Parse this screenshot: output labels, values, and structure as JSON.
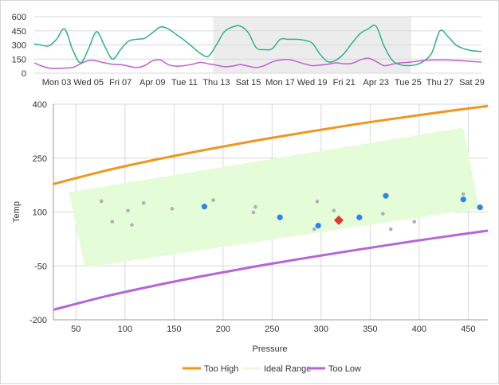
{
  "chart_data": [
    {
      "type": "line",
      "role": "navigator",
      "x_tick_labels": [
        "Mon 03",
        "Wed 05",
        "Fri 07",
        "Apr 09",
        "Tue 11",
        "Thu 13",
        "Sat 15",
        "Mon 17",
        "Wed 19",
        "Fri 21",
        "Apr 23",
        "Tue 25",
        "Thu 27",
        "Sat 29"
      ],
      "x_range": [
        1.6,
        29.6
      ],
      "ylim": [
        0,
        600
      ],
      "y_ticks": [
        0,
        150,
        300,
        450,
        600
      ],
      "selection_range": [
        12.8,
        25.2
      ],
      "colors": {
        "series_a": "#2bb38a",
        "series_b": "#c25fd1",
        "selection": "#ececec"
      },
      "series": [
        {
          "x": [
            1.6,
            2.0,
            2.5,
            3.0,
            3.5,
            4.0,
            4.5,
            5.0,
            5.5,
            6.0,
            6.5,
            7.0,
            7.5,
            8.0,
            8.5,
            9.0,
            9.5,
            10.0,
            10.5,
            11.0,
            11.5,
            12.0,
            12.5,
            13.0,
            13.5,
            14.0,
            14.5,
            15.0,
            15.5,
            16.0,
            16.5,
            17.0,
            17.5,
            18.0,
            18.5,
            19.0,
            19.5,
            20.0,
            20.5,
            21.0,
            21.5,
            22.0,
            22.5,
            23.0,
            23.5,
            24.0,
            24.5,
            25.0,
            25.5,
            26.0,
            26.5,
            27.0,
            27.5,
            28.0,
            28.5,
            29.0,
            29.6
          ],
          "values": [
            310,
            300,
            290,
            360,
            470,
            250,
            110,
            260,
            440,
            290,
            150,
            250,
            340,
            360,
            370,
            430,
            490,
            470,
            410,
            350,
            280,
            210,
            180,
            300,
            440,
            490,
            500,
            430,
            270,
            250,
            260,
            360,
            360,
            360,
            350,
            320,
            200,
            120,
            140,
            210,
            320,
            420,
            470,
            500,
            290,
            140,
            90,
            80,
            90,
            130,
            220,
            450,
            390,
            300,
            260,
            240,
            230
          ]
        },
        {
          "x": [
            1.6,
            2.0,
            2.5,
            3.0,
            3.5,
            4.0,
            4.5,
            5.0,
            5.5,
            6.0,
            6.5,
            7.0,
            7.5,
            8.0,
            8.5,
            9.0,
            9.5,
            10.0,
            10.5,
            11.0,
            11.5,
            12.0,
            12.5,
            13.0,
            13.5,
            14.0,
            14.5,
            15.0,
            15.5,
            16.0,
            16.5,
            17.0,
            17.5,
            18.0,
            18.5,
            19.0,
            19.5,
            20.0,
            20.5,
            21.0,
            21.5,
            22.0,
            22.5,
            23.0,
            23.5,
            24.0,
            24.5,
            25.0,
            25.5,
            26.0,
            26.5,
            27.0,
            27.5,
            28.0,
            28.5,
            29.0,
            29.6
          ],
          "values": [
            110,
            80,
            55,
            50,
            55,
            60,
            100,
            135,
            130,
            110,
            95,
            90,
            75,
            60,
            80,
            130,
            140,
            90,
            75,
            80,
            95,
            115,
            100,
            85,
            70,
            75,
            90,
            75,
            60,
            80,
            120,
            140,
            145,
            125,
            100,
            80,
            85,
            95,
            110,
            100,
            105,
            140,
            160,
            125,
            80,
            95,
            110,
            115,
            125,
            135,
            140,
            140,
            140,
            135,
            130,
            125,
            118
          ]
        }
      ]
    },
    {
      "type": "scatter",
      "role": "main",
      "xlabel": "Pressure",
      "ylabel": "Temp",
      "xlim": [
        27,
        470
      ],
      "ylim": [
        -200,
        400
      ],
      "x_ticks": [
        50,
        100,
        150,
        200,
        250,
        300,
        350,
        400,
        450
      ],
      "y_ticks": [
        400,
        250,
        100,
        -50,
        -200
      ],
      "y_tick_labels": [
        "400",
        "250",
        "100",
        "-50",
        "-200"
      ],
      "grid": true,
      "legend_position": "bottom-center",
      "series": [
        {
          "name": "Too High",
          "type": "line",
          "color": "#f0961e",
          "x": [
            27,
            80,
            130,
            180,
            230,
            280,
            330,
            380,
            430,
            470
          ],
          "y": [
            178,
            215,
            245,
            272,
            297,
            320,
            342,
            362,
            381,
            395
          ]
        },
        {
          "name": "Ideal Range",
          "type": "area",
          "color": "#e4fcd8",
          "polygon": [
            [
              43,
              155
            ],
            [
              445,
              335
            ],
            [
              461,
              110
            ],
            [
              59,
              -55
            ]
          ]
        },
        {
          "name": "Too Low",
          "type": "line",
          "color": "#b565d8",
          "x": [
            27,
            80,
            130,
            180,
            230,
            280,
            330,
            380,
            430,
            470
          ],
          "y": [
            -172,
            -135,
            -105,
            -78,
            -53,
            -30,
            -8,
            13,
            33,
            48
          ]
        },
        {
          "name": "",
          "type": "scatter",
          "color": "#2a85f0",
          "x": [
            181,
            258,
            297,
            339,
            366,
            445,
            462
          ],
          "y": [
            115,
            85,
            62,
            85,
            145,
            135,
            113
          ]
        },
        {
          "name": "",
          "type": "scatter",
          "color": "#b0b0b0",
          "x": [
            76,
            87,
            103,
            107,
            119,
            148,
            190,
            231,
            233,
            293,
            296,
            313,
            363,
            371,
            395,
            445
          ],
          "y": [
            130,
            73,
            104,
            64,
            125,
            109,
            133,
            99,
            114,
            52,
            129,
            104,
            95,
            52,
            73,
            150
          ]
        },
        {
          "name": "",
          "type": "marker",
          "shape": "diamond",
          "color": "#e0392b",
          "x": [
            318
          ],
          "y": [
            77
          ]
        }
      ],
      "legend": [
        "Too High",
        "Ideal Range",
        "Too Low"
      ]
    }
  ]
}
